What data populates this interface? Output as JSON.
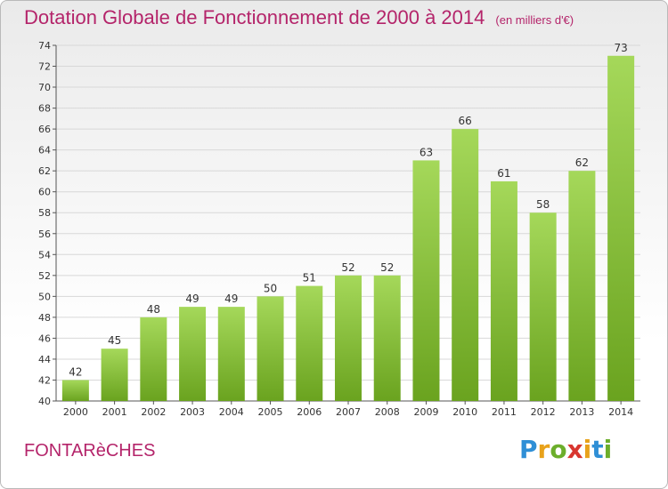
{
  "title": "Dotation Globale de Fonctionnement de 2000 à 2014",
  "unit_label": "(en milliers d'€)",
  "commune": "FONTARèCHES",
  "logo": {
    "letters": [
      "P",
      "r",
      "o",
      "x",
      "i",
      "t",
      "i"
    ],
    "colors": [
      "#2f8fd6",
      "#e8a21b",
      "#6cae2b",
      "#d8362f",
      "#e8a21b",
      "#2f8fd6",
      "#6cae2b"
    ]
  },
  "colors": {
    "title": "#b4246a",
    "bar_top": "#a5d85a",
    "bar_bottom": "#6aa31f",
    "grid": "#d8d8d8"
  },
  "chart_data": {
    "type": "bar",
    "categories": [
      "2000",
      "2001",
      "2002",
      "2003",
      "2004",
      "2005",
      "2006",
      "2007",
      "2008",
      "2009",
      "2010",
      "2011",
      "2012",
      "2013",
      "2014"
    ],
    "values": [
      42,
      45,
      48,
      49,
      49,
      50,
      51,
      52,
      52,
      63,
      66,
      61,
      58,
      62,
      73
    ],
    "ylim": [
      40,
      74
    ],
    "yticks": [
      40,
      42,
      44,
      46,
      48,
      50,
      52,
      54,
      56,
      58,
      60,
      62,
      64,
      66,
      68,
      70,
      72,
      74
    ],
    "grid": "horizontal"
  }
}
